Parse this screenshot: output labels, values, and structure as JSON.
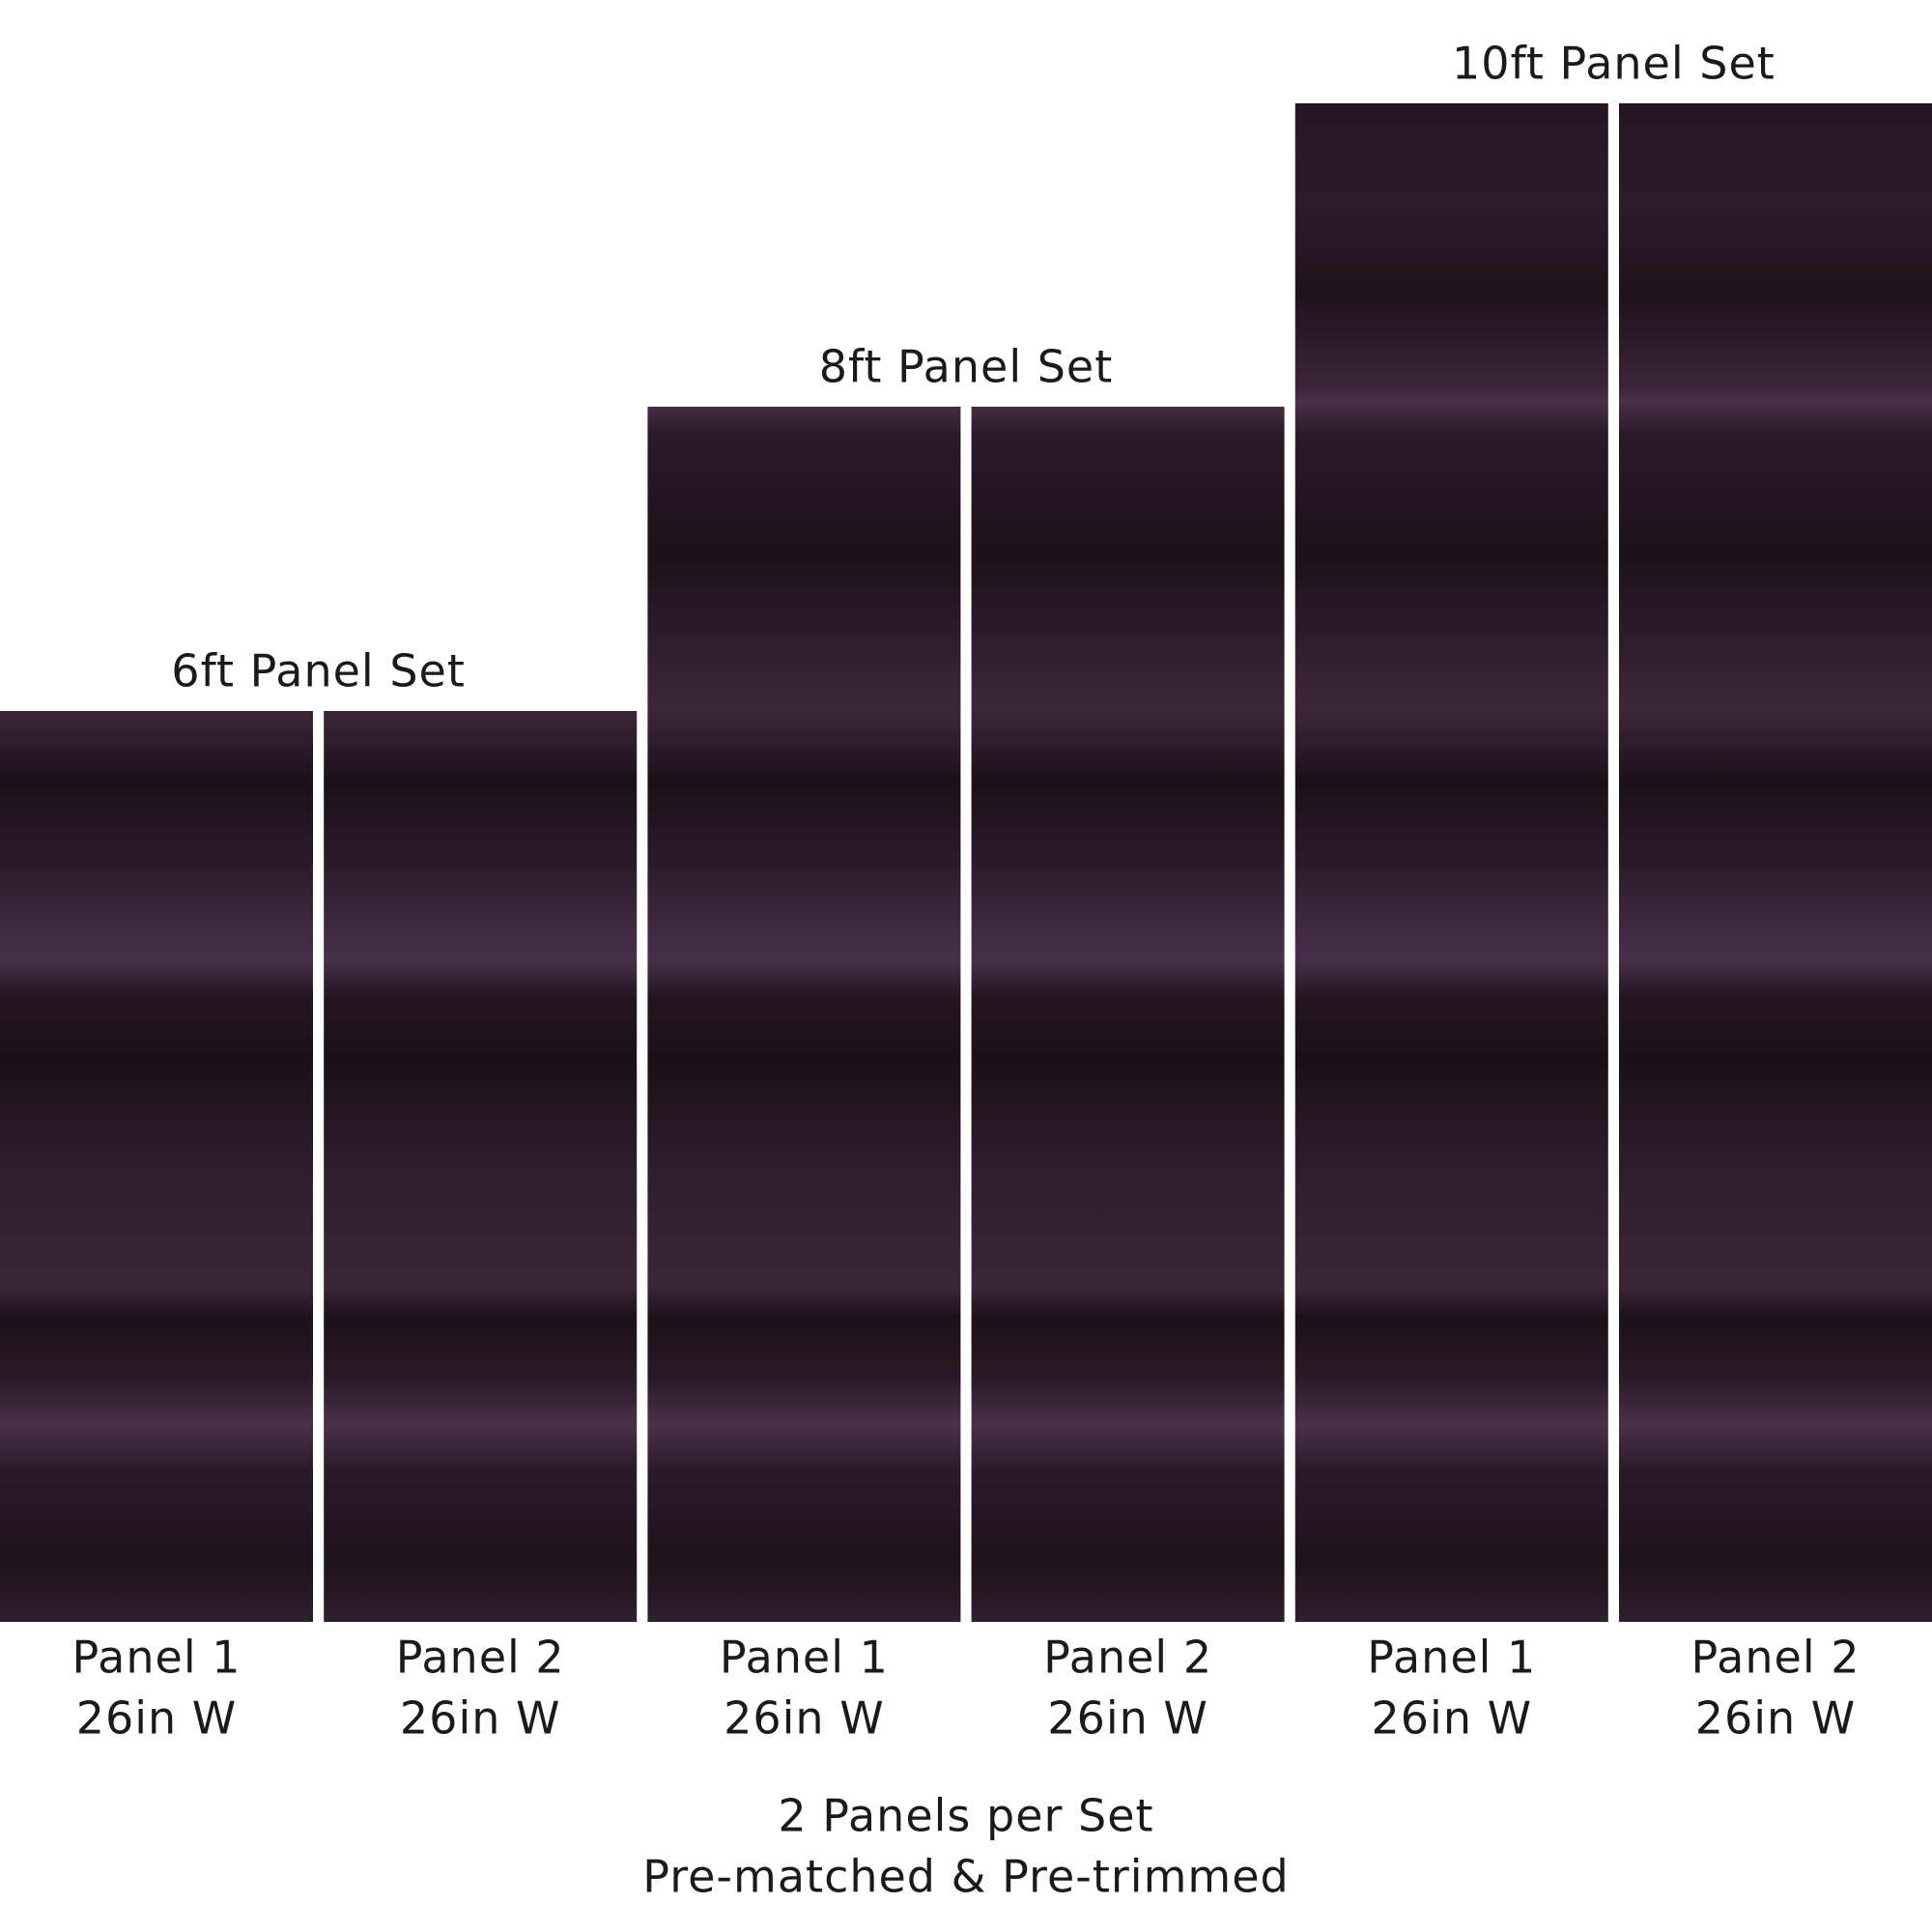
{
  "sets": [
    {
      "title": "6ft Panel Set",
      "panels": [
        {
          "label": "Panel 1",
          "width": "26in W"
        },
        {
          "label": "Panel 2",
          "width": "26in W"
        }
      ]
    },
    {
      "title": "8ft Panel Set",
      "panels": [
        {
          "label": "Panel 1",
          "width": "26in W"
        },
        {
          "label": "Panel 2",
          "width": "26in W"
        }
      ]
    },
    {
      "title": "10ft Panel Set",
      "panels": [
        {
          "label": "Panel 1",
          "width": "26in W"
        },
        {
          "label": "Panel 2",
          "width": "26in W"
        }
      ]
    }
  ],
  "footer": [
    "2 Panels per Set",
    "Pre-matched & Pre-trimmed"
  ]
}
